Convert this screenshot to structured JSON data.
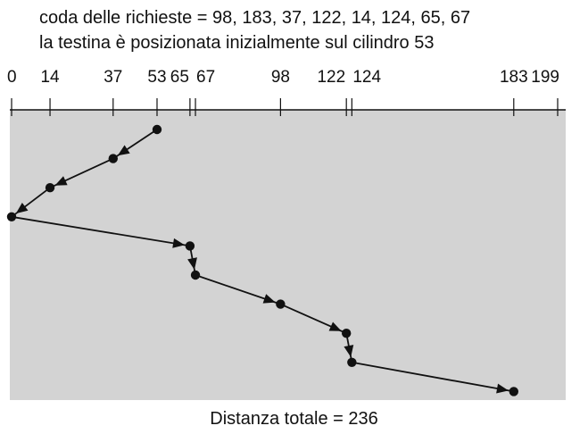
{
  "header": {
    "queue_text": "coda delle richieste = 98, 183, 37, 122, 14, 124, 65, 67",
    "start_text": "la testina è posizionata inizialmente sul cilindro 53"
  },
  "axis": {
    "min": 0,
    "max": 199,
    "ticks": [
      {
        "value": 0,
        "label": "0"
      },
      {
        "value": 14,
        "label": "14"
      },
      {
        "value": 37,
        "label": "37"
      },
      {
        "value": 53,
        "label": "53"
      },
      {
        "value": 65,
        "label": "65"
      },
      {
        "value": 67,
        "label": "67"
      },
      {
        "value": 98,
        "label": "98"
      },
      {
        "value": 122,
        "label": "122"
      },
      {
        "value": 124,
        "label": "124"
      },
      {
        "value": 183,
        "label": "183"
      },
      {
        "value": 199,
        "label": "199"
      }
    ]
  },
  "path": [
    53,
    37,
    14,
    0,
    65,
    67,
    98,
    122,
    124,
    183
  ],
  "colors": {
    "panel": "#d3d3d3",
    "ink": "#111111"
  },
  "footer": {
    "total_text": "Distanza totale = 236"
  }
}
